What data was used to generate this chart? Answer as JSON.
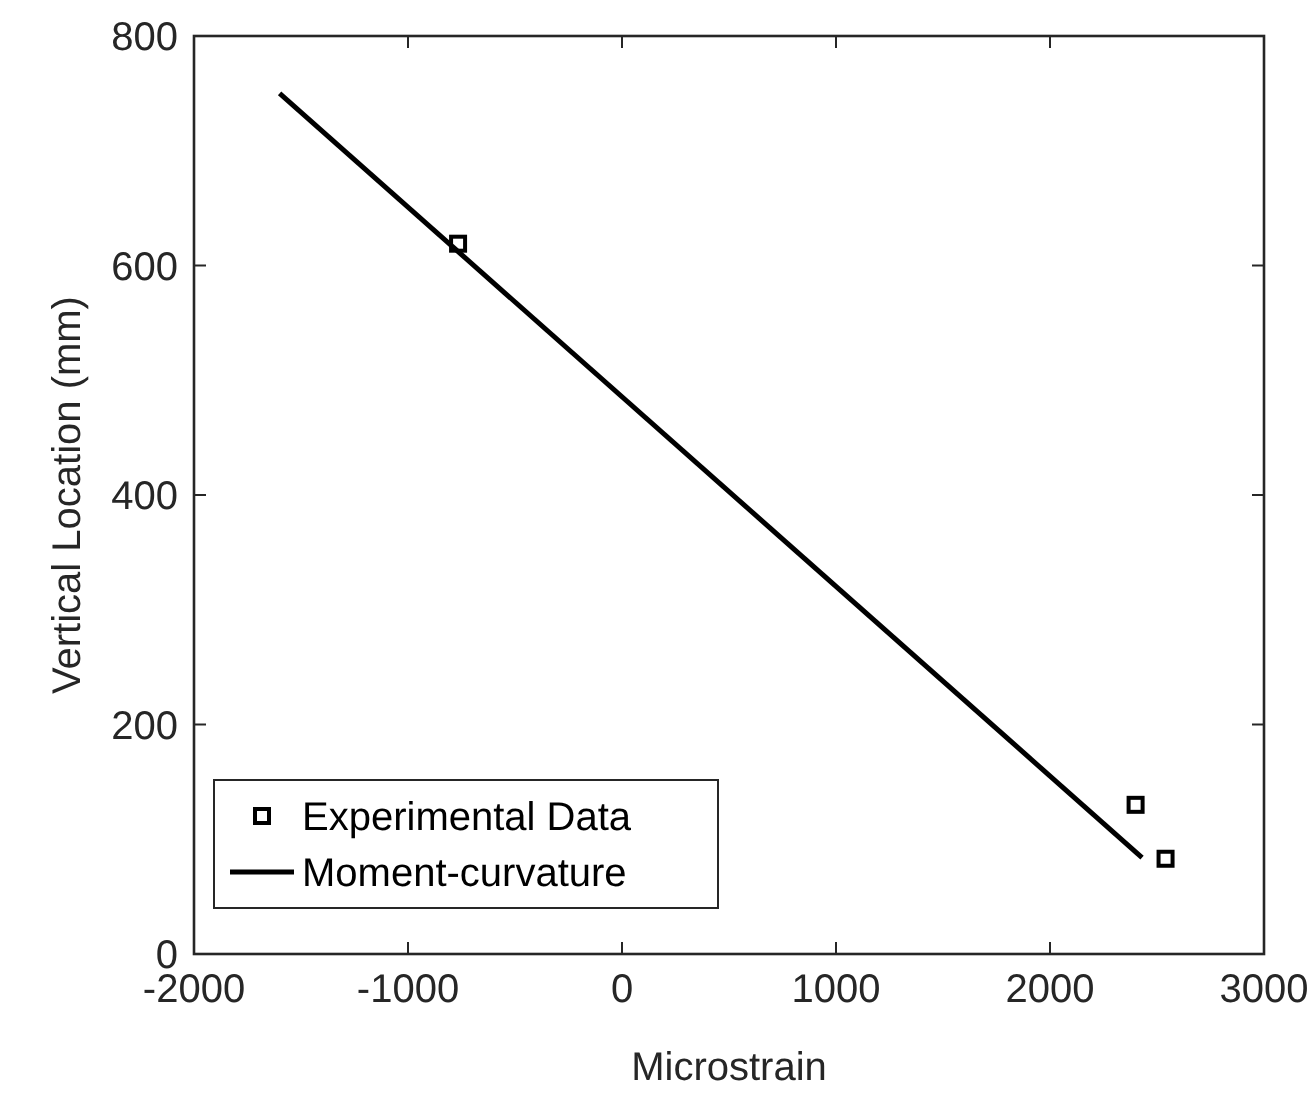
{
  "chart_data": {
    "type": "scatter",
    "xlabel": "Microstrain",
    "ylabel": "Vertical Location (mm)",
    "xlim": [
      -2000,
      3000
    ],
    "ylim": [
      0,
      800
    ],
    "xticks": [
      -2000,
      -1000,
      0,
      1000,
      2000,
      3000
    ],
    "yticks": [
      0,
      200,
      400,
      600,
      800
    ],
    "grid": false,
    "legend": "bottom left",
    "series": [
      {
        "name": "Experimental Data",
        "color": "#000000",
        "marker": "square",
        "x": [
          -766,
          2400,
          2540
        ],
        "values": [
          619,
          130,
          83
        ]
      },
      {
        "name": "Moment-curvature",
        "type": "line",
        "color": "#000000",
        "marker": "none",
        "line_style": "solid",
        "x": [
          -1600,
          2430
        ],
        "values": [
          750,
          84
        ]
      }
    ]
  }
}
